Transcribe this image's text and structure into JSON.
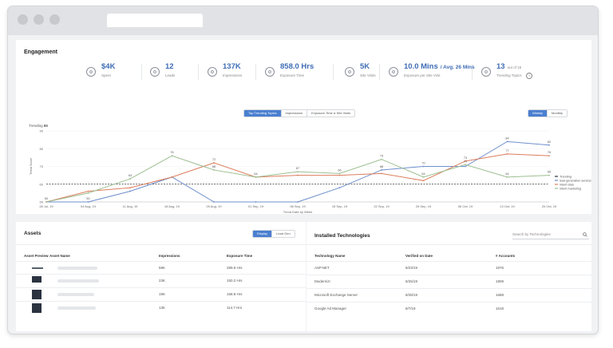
{
  "engagement": {
    "title": "Engagement",
    "metrics": [
      {
        "value": "$4K",
        "label": "Spent",
        "icon": "dollar-icon"
      },
      {
        "value": "12",
        "label": "Leads",
        "icon": "lead-icon"
      },
      {
        "value": "137K",
        "label": "Impressions",
        "icon": "eye-icon"
      },
      {
        "value": "858.0 Hrs",
        "label": "Exposure Time",
        "icon": "clock-icon"
      },
      {
        "value": "5K",
        "label": "Site Visits",
        "icon": "users-icon"
      },
      {
        "value": "10.0 Mins",
        "sub_value": "/ Avg. 26 Mins",
        "label": "Exposure per Site Visit",
        "icon": "timer-icon"
      },
      {
        "value": "13",
        "sub_value": "out of 15",
        "label": "Trending Topics",
        "icon": "topics-icon"
      }
    ]
  },
  "chart_tabs": [
    "Top Trending Topics",
    "Impressions",
    "Exposure Time & Site Visits"
  ],
  "period_tabs": [
    "Weekly",
    "Monthly"
  ],
  "chart_data": {
    "type": "line",
    "trending_label": "Trending",
    "trending_value": "65",
    "xlabel": "Trend Date by Week",
    "ylabel": "Trend Score",
    "categories": [
      "28 Jul, 19",
      "04 Aug, 19",
      "11 Aug, 19",
      "18 Aug, 19",
      "25 Aug, 19",
      "01 Sep, 19",
      "08 Sep, 19",
      "15 Sep, 19",
      "22 Sep, 19",
      "29 Sep, 19",
      "06 Oct, 19",
      "13 Oct, 19",
      "20 Oct, 19"
    ],
    "yticks": [
      90,
      80,
      70,
      60,
      50
    ],
    "ylim": [
      50,
      90
    ],
    "reference_line": 60,
    "series": [
      {
        "name": "Trending",
        "color": "#2d3440",
        "values": [
          null,
          null,
          null,
          null,
          null,
          null,
          null,
          null,
          null,
          null,
          null,
          null,
          null
        ]
      },
      {
        "name": "lead generation services",
        "color": "#6f8fcc",
        "values": [
          50,
          50,
          56,
          64,
          50,
          50,
          50,
          58,
          68,
          70,
          70,
          84,
          82
        ]
      },
      {
        "name": "intent data",
        "color": "#dc7e5e",
        "values": [
          50,
          56,
          58,
          64,
          72,
          64,
          65,
          65,
          66,
          62,
          73,
          77,
          76
        ]
      },
      {
        "name": "intent marketing",
        "color": "#9cbe90",
        "values": [
          50,
          55,
          63,
          76,
          68,
          64,
          67,
          66,
          74,
          64,
          71,
          64,
          65
        ]
      }
    ],
    "data_labels": {
      "lead generation services": [
        "50",
        "50",
        "",
        "",
        "",
        "",
        "",
        "",
        "68",
        "70",
        "",
        "84",
        "82"
      ],
      "intent data": [
        "",
        "",
        "",
        "",
        "72",
        "",
        "",
        "",
        "",
        "",
        "73",
        "77",
        "76"
      ],
      "intent marketing": [
        "",
        "",
        "63",
        "76",
        "68",
        "64",
        "67",
        "66",
        "74",
        "64",
        "71",
        "64",
        "65"
      ]
    }
  },
  "assets": {
    "title": "Assets",
    "toggles": [
      "Display",
      "Lead Gen"
    ],
    "columns": [
      "Asset Preview",
      "Asset Name",
      "Impressions",
      "Exposure Time"
    ],
    "rows": [
      {
        "impressions": "58K",
        "exposure": "289.5 Hrs"
      },
      {
        "impressions": "23K",
        "exposure": "150.2 Hrs"
      },
      {
        "impressions": "19K",
        "exposure": "168.8 Hrs"
      },
      {
        "impressions": "13K",
        "exposure": "114.7 Hrs"
      }
    ]
  },
  "technologies": {
    "title": "Installed Technologies",
    "search_placeholder": "Search by Technologies",
    "columns": [
      "Technology Name",
      "Verified on Date",
      "# Accounts"
    ],
    "rows": [
      {
        "name": "ASP.NET",
        "date": "8/23/19",
        "accounts": "1976"
      },
      {
        "name": "Modernizr",
        "date": "8/26/19",
        "accounts": "1909"
      },
      {
        "name": "Microsoft Exchange Server",
        "date": "8/28/19",
        "accounts": "1688"
      },
      {
        "name": "Google Ad Manager",
        "date": "8/7/19",
        "accounts": "1618"
      }
    ]
  }
}
